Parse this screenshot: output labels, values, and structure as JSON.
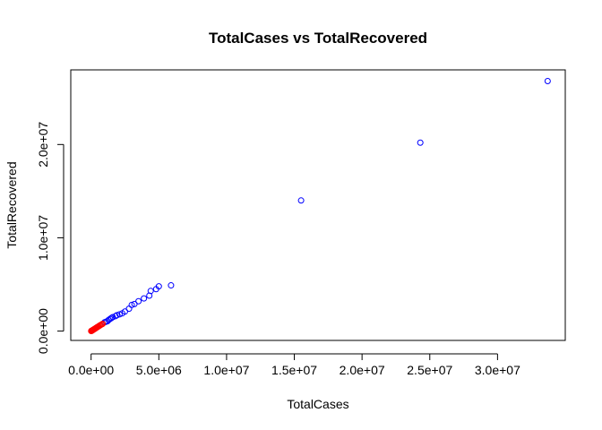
{
  "chart_data": {
    "type": "scatter",
    "title": "TotalCases  vs TotalRecovered",
    "xlabel": "TotalCases",
    "ylabel": "TotalRecovered",
    "xlim": [
      -1500000,
      35000000
    ],
    "ylim": [
      -1000000,
      28000000
    ],
    "x_ticks": [
      0,
      5000000,
      10000000,
      15000000,
      20000000,
      25000000,
      30000000
    ],
    "x_tick_labels": [
      "0.0e+00",
      "5.0e+06",
      "1.0e+07",
      "1.5e+07",
      "2.0e+07",
      "2.5e+07",
      "3.0e+07"
    ],
    "y_ticks": [
      0,
      10000000,
      20000000
    ],
    "y_tick_labels": [
      "0.0e+00",
      "1.0e+07",
      "2.0e+07"
    ],
    "grid": false,
    "series": [
      {
        "color": "#0000ff",
        "points": [
          [
            33700000,
            26800000
          ],
          [
            24300000,
            20200000
          ],
          [
            15500000,
            14000000
          ],
          [
            5900000,
            4900000
          ],
          [
            5000000,
            4800000
          ],
          [
            4800000,
            4500000
          ],
          [
            4400000,
            4300000
          ],
          [
            4300000,
            3800000
          ],
          [
            3900000,
            3500000
          ],
          [
            3500000,
            3200000
          ],
          [
            3200000,
            2900000
          ],
          [
            3000000,
            2800000
          ],
          [
            2800000,
            2400000
          ],
          [
            2500000,
            2100000
          ],
          [
            2300000,
            1900000
          ],
          [
            2100000,
            1800000
          ],
          [
            1900000,
            1700000
          ],
          [
            1800000,
            1600000
          ],
          [
            1600000,
            1500000
          ],
          [
            1500000,
            1400000
          ],
          [
            1400000,
            1300000
          ],
          [
            1300000,
            1200000
          ],
          [
            1200000,
            1050000
          ],
          [
            1100000,
            1000000
          ],
          [
            1000000,
            950000
          ]
        ]
      },
      {
        "color": "#ff0000",
        "points": [
          [
            850000,
            780000
          ],
          [
            780000,
            720000
          ],
          [
            700000,
            650000
          ],
          [
            640000,
            600000
          ],
          [
            580000,
            540000
          ],
          [
            520000,
            480000
          ],
          [
            460000,
            430000
          ],
          [
            410000,
            380000
          ],
          [
            360000,
            330000
          ],
          [
            320000,
            290000
          ],
          [
            280000,
            250000
          ],
          [
            240000,
            220000
          ],
          [
            200000,
            180000
          ],
          [
            170000,
            150000
          ],
          [
            140000,
            120000
          ],
          [
            110000,
            95000
          ],
          [
            80000,
            70000
          ],
          [
            60000,
            50000
          ],
          [
            40000,
            30000
          ],
          [
            20000,
            15000
          ],
          [
            8000,
            5000
          ]
        ]
      }
    ]
  }
}
